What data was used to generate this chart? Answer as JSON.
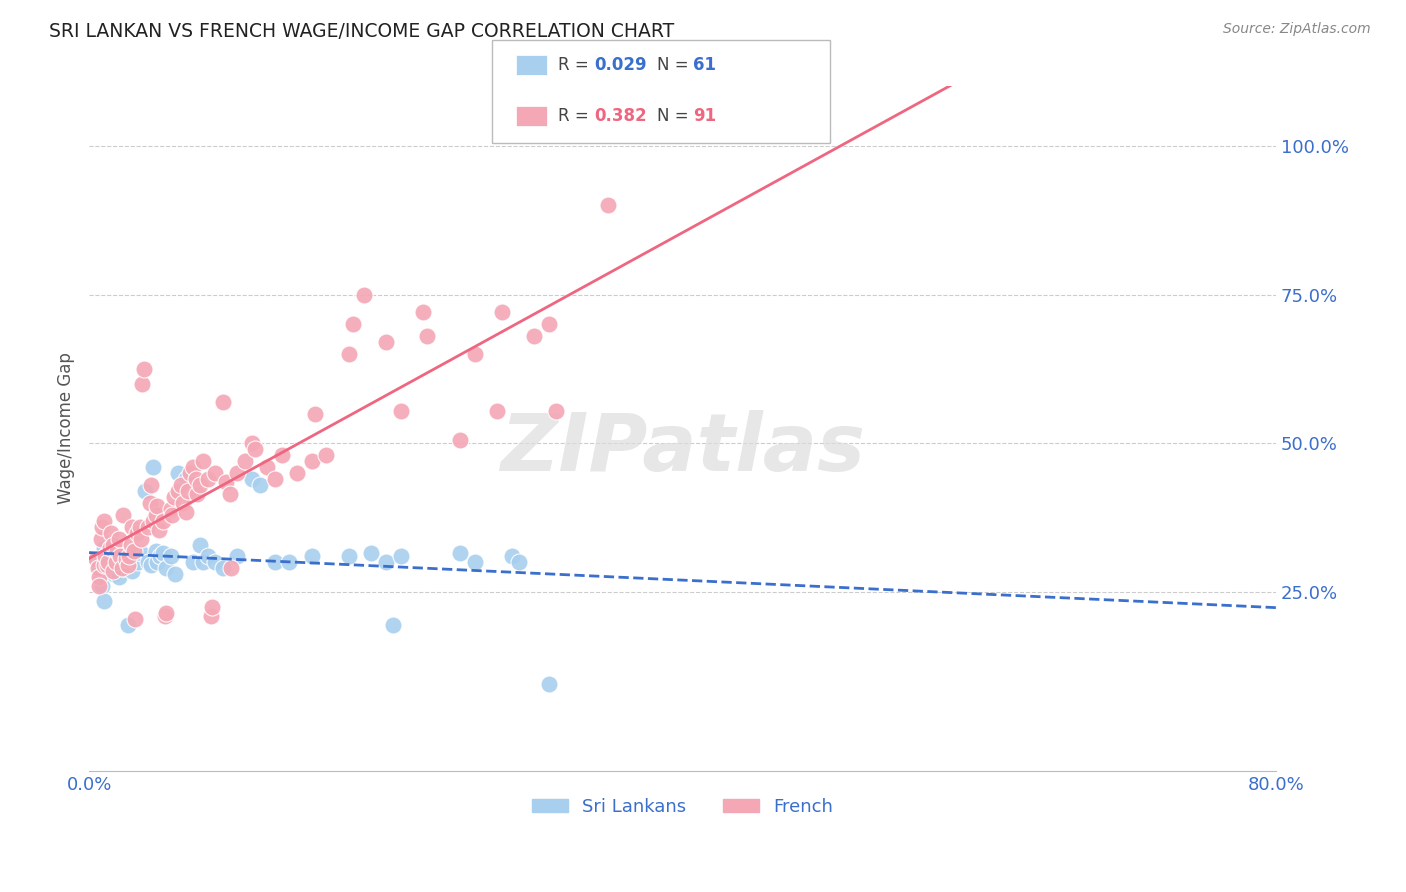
{
  "title": "SRI LANKAN VS FRENCH WAGE/INCOME GAP CORRELATION CHART",
  "source": "Source: ZipAtlas.com",
  "ylabel": "Wage/Income Gap",
  "ytick_labels": [
    "100.0%",
    "75.0%",
    "50.0%",
    "25.0%"
  ],
  "ytick_values": [
    1.0,
    0.75,
    0.5,
    0.25
  ],
  "xlim": [
    0.0,
    0.8
  ],
  "ylim": [
    -0.05,
    1.1
  ],
  "watermark": "ZIPatlas",
  "sri_lankans_color": "#A8CFEE",
  "french_color": "#F4A7B5",
  "sri_lankans_line_color": "#3B6FCC",
  "french_line_color": "#EE6680",
  "grid_color": "#CCCCCC",
  "title_color": "#222222",
  "tick_color": "#3B6FCC",
  "legend_entries": [
    {
      "r_val": "0.029",
      "n_val": "61",
      "color": "#A8CFEE",
      "r_color": "#3B6FCC",
      "n_color": "#3B6FCC"
    },
    {
      "r_val": "0.382",
      "n_val": "91",
      "color": "#F4A7B5",
      "r_color": "#EE6680",
      "n_color": "#EE6680"
    }
  ],
  "sri_lankans_points": [
    [
      0.005,
      0.305
    ],
    [
      0.007,
      0.295
    ],
    [
      0.008,
      0.275
    ],
    [
      0.009,
      0.26
    ],
    [
      0.01,
      0.235
    ],
    [
      0.01,
      0.325
    ],
    [
      0.012,
      0.305
    ],
    [
      0.013,
      0.3
    ],
    [
      0.015,
      0.31
    ],
    [
      0.015,
      0.315
    ],
    [
      0.016,
      0.285
    ],
    [
      0.017,
      0.28
    ],
    [
      0.018,
      0.305
    ],
    [
      0.019,
      0.295
    ],
    [
      0.02,
      0.275
    ],
    [
      0.021,
      0.32
    ],
    [
      0.022,
      0.3
    ],
    [
      0.023,
      0.29
    ],
    [
      0.025,
      0.315
    ],
    [
      0.026,
      0.195
    ],
    [
      0.028,
      0.295
    ],
    [
      0.029,
      0.285
    ],
    [
      0.03,
      0.315
    ],
    [
      0.032,
      0.305
    ],
    [
      0.033,
      0.3
    ],
    [
      0.035,
      0.315
    ],
    [
      0.038,
      0.42
    ],
    [
      0.04,
      0.3
    ],
    [
      0.042,
      0.295
    ],
    [
      0.043,
      0.46
    ],
    [
      0.045,
      0.32
    ],
    [
      0.046,
      0.3
    ],
    [
      0.048,
      0.31
    ],
    [
      0.05,
      0.315
    ],
    [
      0.052,
      0.29
    ],
    [
      0.055,
      0.31
    ],
    [
      0.058,
      0.28
    ],
    [
      0.06,
      0.45
    ],
    [
      0.065,
      0.44
    ],
    [
      0.07,
      0.3
    ],
    [
      0.075,
      0.33
    ],
    [
      0.077,
      0.3
    ],
    [
      0.08,
      0.31
    ],
    [
      0.085,
      0.3
    ],
    [
      0.09,
      0.29
    ],
    [
      0.1,
      0.31
    ],
    [
      0.11,
      0.44
    ],
    [
      0.115,
      0.43
    ],
    [
      0.125,
      0.3
    ],
    [
      0.135,
      0.3
    ],
    [
      0.15,
      0.31
    ],
    [
      0.175,
      0.31
    ],
    [
      0.19,
      0.315
    ],
    [
      0.2,
      0.3
    ],
    [
      0.205,
      0.195
    ],
    [
      0.21,
      0.31
    ],
    [
      0.25,
      0.315
    ],
    [
      0.26,
      0.3
    ],
    [
      0.285,
      0.31
    ],
    [
      0.29,
      0.3
    ],
    [
      0.31,
      0.095
    ]
  ],
  "french_points": [
    [
      0.005,
      0.305
    ],
    [
      0.006,
      0.29
    ],
    [
      0.007,
      0.275
    ],
    [
      0.007,
      0.26
    ],
    [
      0.008,
      0.34
    ],
    [
      0.009,
      0.36
    ],
    [
      0.01,
      0.37
    ],
    [
      0.01,
      0.295
    ],
    [
      0.011,
      0.31
    ],
    [
      0.012,
      0.295
    ],
    [
      0.013,
      0.3
    ],
    [
      0.014,
      0.325
    ],
    [
      0.015,
      0.35
    ],
    [
      0.016,
      0.33
    ],
    [
      0.016,
      0.285
    ],
    [
      0.018,
      0.3
    ],
    [
      0.019,
      0.32
    ],
    [
      0.02,
      0.34
    ],
    [
      0.021,
      0.31
    ],
    [
      0.022,
      0.29
    ],
    [
      0.023,
      0.38
    ],
    [
      0.025,
      0.305
    ],
    [
      0.026,
      0.295
    ],
    [
      0.027,
      0.31
    ],
    [
      0.028,
      0.33
    ],
    [
      0.029,
      0.36
    ],
    [
      0.03,
      0.32
    ],
    [
      0.031,
      0.205
    ],
    [
      0.032,
      0.35
    ],
    [
      0.034,
      0.36
    ],
    [
      0.035,
      0.34
    ],
    [
      0.036,
      0.6
    ],
    [
      0.037,
      0.625
    ],
    [
      0.04,
      0.36
    ],
    [
      0.041,
      0.4
    ],
    [
      0.042,
      0.43
    ],
    [
      0.043,
      0.37
    ],
    [
      0.045,
      0.38
    ],
    [
      0.046,
      0.395
    ],
    [
      0.047,
      0.355
    ],
    [
      0.05,
      0.37
    ],
    [
      0.051,
      0.21
    ],
    [
      0.052,
      0.215
    ],
    [
      0.055,
      0.39
    ],
    [
      0.056,
      0.38
    ],
    [
      0.057,
      0.41
    ],
    [
      0.06,
      0.42
    ],
    [
      0.062,
      0.43
    ],
    [
      0.063,
      0.4
    ],
    [
      0.065,
      0.385
    ],
    [
      0.067,
      0.42
    ],
    [
      0.068,
      0.45
    ],
    [
      0.07,
      0.46
    ],
    [
      0.072,
      0.44
    ],
    [
      0.073,
      0.415
    ],
    [
      0.075,
      0.43
    ],
    [
      0.077,
      0.47
    ],
    [
      0.08,
      0.44
    ],
    [
      0.082,
      0.21
    ],
    [
      0.083,
      0.225
    ],
    [
      0.085,
      0.45
    ],
    [
      0.09,
      0.57
    ],
    [
      0.092,
      0.435
    ],
    [
      0.095,
      0.415
    ],
    [
      0.096,
      0.29
    ],
    [
      0.1,
      0.45
    ],
    [
      0.105,
      0.47
    ],
    [
      0.11,
      0.5
    ],
    [
      0.112,
      0.49
    ],
    [
      0.12,
      0.46
    ],
    [
      0.125,
      0.44
    ],
    [
      0.13,
      0.48
    ],
    [
      0.14,
      0.45
    ],
    [
      0.15,
      0.47
    ],
    [
      0.152,
      0.55
    ],
    [
      0.16,
      0.48
    ],
    [
      0.175,
      0.65
    ],
    [
      0.178,
      0.7
    ],
    [
      0.185,
      0.75
    ],
    [
      0.2,
      0.67
    ],
    [
      0.21,
      0.555
    ],
    [
      0.225,
      0.72
    ],
    [
      0.228,
      0.68
    ],
    [
      0.25,
      0.505
    ],
    [
      0.26,
      0.65
    ],
    [
      0.275,
      0.555
    ],
    [
      0.278,
      0.72
    ],
    [
      0.3,
      0.68
    ],
    [
      0.31,
      0.7
    ],
    [
      0.315,
      0.555
    ],
    [
      0.35,
      0.9
    ]
  ]
}
